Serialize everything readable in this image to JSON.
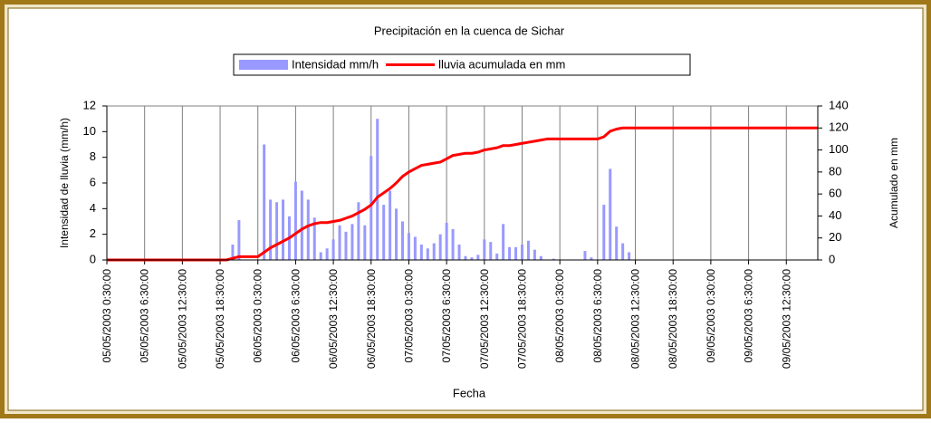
{
  "chart_data": {
    "type": "bar",
    "title": "Precipitación en la cuenca de Sichar",
    "x_label": "Fecha",
    "y_label": "Intensidad de lluvia (mm/h)",
    "y2_label": "Acumulado en mm",
    "categories": [
      "05/05/2003 0:30:00",
      null,
      null,
      null,
      null,
      null,
      "05/05/2003 6:30:00",
      null,
      null,
      null,
      null,
      null,
      "05/05/2003 12:30:00",
      null,
      null,
      null,
      null,
      null,
      "05/05/2003 18:30:00",
      null,
      null,
      null,
      null,
      null,
      "06/05/2003 0:30:00",
      null,
      null,
      null,
      null,
      null,
      "06/05/2003 6:30:00",
      null,
      null,
      null,
      null,
      null,
      "06/05/2003 12:30:00",
      null,
      null,
      null,
      null,
      null,
      "06/05/2003 18:30:00",
      null,
      null,
      null,
      null,
      null,
      "07/05/2003 0:30:00",
      null,
      null,
      null,
      null,
      null,
      "07/05/2003 6:30:00",
      null,
      null,
      null,
      null,
      null,
      "07/05/2003 12:30:00",
      null,
      null,
      null,
      null,
      null,
      "07/05/2003 18:30:00",
      null,
      null,
      null,
      null,
      null,
      "08/05/2003 0:30:00",
      null,
      null,
      null,
      null,
      null,
      "08/05/2003 6:30:00",
      null,
      null,
      null,
      null,
      null,
      "08/05/2003 12:30:00",
      null,
      null,
      null,
      null,
      null,
      "08/05/2003 18:30:00",
      null,
      null,
      null,
      null,
      null,
      "09/05/2003 0:30:00",
      null,
      null,
      null,
      null,
      null,
      "09/05/2003 6:30:00",
      null,
      null,
      null,
      null,
      null,
      "09/05/2003 12:30:00",
      null,
      null,
      null,
      null,
      null
    ],
    "series": [
      {
        "name": "Intensidad mm/h",
        "type": "bar",
        "color": "#9999ff",
        "values": [
          0,
          0,
          0,
          0,
          0,
          0,
          0,
          0,
          0,
          0,
          0,
          0,
          0,
          0,
          0,
          0,
          0,
          0,
          0,
          0,
          1.2,
          3.1,
          0,
          0,
          0,
          9.0,
          4.7,
          4.5,
          4.7,
          3.4,
          6.1,
          5.4,
          4.7,
          3.3,
          0.6,
          0.9,
          1.6,
          2.7,
          2.2,
          2.8,
          4.5,
          2.7,
          8.1,
          11.0,
          4.3,
          5.4,
          4.0,
          3.0,
          2.1,
          1.8,
          1.2,
          0.9,
          1.3,
          2.0,
          2.9,
          2.4,
          1.2,
          0.3,
          0.2,
          0.4,
          1.6,
          1.4,
          0.5,
          2.8,
          1.0,
          1.0,
          1.2,
          1.5,
          0.8,
          0.3,
          0,
          0.1,
          0,
          0,
          0,
          0,
          0.7,
          0.2,
          0,
          4.3,
          7.1,
          2.6,
          1.3,
          0.6,
          0,
          0,
          0,
          0,
          0,
          0,
          0,
          0,
          0,
          0,
          0,
          0,
          0,
          0,
          0,
          0,
          0,
          0,
          0,
          0,
          0,
          0,
          0,
          0,
          0,
          0,
          0,
          0,
          0,
          0
        ]
      },
      {
        "name": "lluvia acumulada en mm",
        "type": "line",
        "axis": "y2",
        "color": "#ff0000",
        "values": [
          0,
          0,
          0,
          0,
          0,
          0,
          0,
          0,
          0,
          0,
          0,
          0,
          0,
          0,
          0,
          0,
          0,
          0,
          0,
          0,
          1.5,
          3,
          3,
          3,
          3,
          7,
          11,
          14,
          17,
          20,
          24,
          28,
          31,
          33,
          34,
          34,
          35,
          36,
          38,
          40,
          43,
          46,
          50,
          57,
          61,
          65,
          70,
          76,
          80,
          83,
          86,
          87,
          88,
          89,
          92,
          95,
          96,
          97,
          97,
          98,
          100,
          101,
          102,
          104,
          104,
          105,
          106,
          107,
          108,
          109,
          110,
          110,
          110,
          110,
          110,
          110,
          110,
          110,
          110,
          112,
          117,
          119,
          120,
          120,
          120,
          120,
          120,
          120,
          120,
          120,
          120,
          120,
          120,
          120,
          120,
          120,
          120,
          120,
          120,
          120,
          120,
          120,
          120,
          120,
          120,
          120,
          120,
          120,
          120,
          120,
          120,
          120,
          120,
          120
        ]
      }
    ],
    "ylim": [
      0,
      12
    ],
    "yticks": [
      0,
      2,
      4,
      6,
      8,
      10,
      12
    ],
    "y2lim": [
      0,
      140
    ],
    "y2ticks": [
      0,
      20,
      40,
      60,
      80,
      100,
      120,
      140
    ],
    "grid": true
  }
}
